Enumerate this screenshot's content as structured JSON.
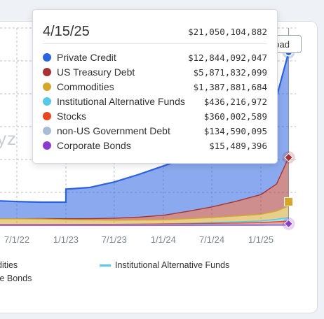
{
  "watermark": "yz",
  "toolbar": {
    "download_label": "oad"
  },
  "tooltip": {
    "date": "4/15/25",
    "total": "$21,050,104,882",
    "rows": [
      {
        "label": "Private Credit",
        "value": "$12,844,092,047",
        "color": "#2b62e0"
      },
      {
        "label": "US Treasury Debt",
        "value": "$5,871,832,099",
        "color": "#a63232"
      },
      {
        "label": "Commodities",
        "value": "$1,387,881,684",
        "color": "#d4a72c"
      },
      {
        "label": "Institutional Alternative Funds",
        "value": "$436,216,972",
        "color": "#56c8e8"
      },
      {
        "label": "Stocks",
        "value": "$360,002,589",
        "color": "#e8481f"
      },
      {
        "label": "non-US Government Debt",
        "value": "$134,590,095",
        "color": "#a9bcd6"
      },
      {
        "label": "Corporate Bonds",
        "value": "$15,489,396",
        "color": "#8b3ccc"
      }
    ]
  },
  "legend": {
    "items": [
      {
        "label": "dities",
        "color": "#d4a72c"
      },
      {
        "label": "Institutional Alternative Funds",
        "color": "#56c8e8"
      },
      {
        "label": "te Bonds",
        "color": "#8b3ccc"
      }
    ]
  },
  "chart_data": {
    "type": "area",
    "stacked": true,
    "x_ticks": [
      "7/1/22",
      "1/1/23",
      "7/1/23",
      "1/1/24",
      "7/1/24",
      "1/1/25"
    ],
    "x": [
      "2022-04-15",
      "2022-07-01",
      "2022-10-01",
      "2023-01-01",
      "2023-04-01",
      "2023-07-01",
      "2023-10-01",
      "2024-01-01",
      "2024-04-01",
      "2024-07-01",
      "2024-10-01",
      "2025-01-01",
      "2025-03-01",
      "2025-04-15"
    ],
    "series": [
      {
        "name": "Private Credit",
        "color": "#2b62e0",
        "values": [
          2.2,
          2.1,
          2.0,
          3.6,
          3.8,
          4.4,
          5.2,
          6.0,
          6.6,
          7.4,
          8.2,
          9.4,
          10.6,
          12.8
        ]
      },
      {
        "name": "US Treasury Debt",
        "color": "#a63232",
        "values": [
          0.0,
          0.0,
          0.05,
          0.1,
          0.15,
          0.25,
          0.35,
          0.55,
          0.9,
          1.3,
          1.8,
          2.4,
          3.3,
          5.9
        ]
      },
      {
        "name": "Commodities",
        "color": "#d4a72c",
        "values": [
          0.7,
          0.7,
          0.68,
          0.6,
          0.55,
          0.5,
          0.5,
          0.5,
          0.55,
          0.6,
          0.7,
          0.8,
          1.0,
          1.4
        ]
      },
      {
        "name": "Institutional Alternative Funds",
        "color": "#56c8e8",
        "values": [
          0.0,
          0.0,
          0.0,
          0.0,
          0.0,
          0.0,
          0.0,
          0.0,
          0.05,
          0.1,
          0.15,
          0.2,
          0.3,
          0.44
        ]
      },
      {
        "name": "Stocks",
        "color": "#e8481f",
        "values": [
          0.05,
          0.05,
          0.05,
          0.05,
          0.05,
          0.05,
          0.06,
          0.08,
          0.1,
          0.12,
          0.15,
          0.2,
          0.28,
          0.36
        ]
      },
      {
        "name": "non-US Government Debt",
        "color": "#a9bcd6",
        "values": [
          0.03,
          0.03,
          0.03,
          0.04,
          0.05,
          0.06,
          0.07,
          0.08,
          0.09,
          0.1,
          0.11,
          0.12,
          0.13,
          0.13
        ]
      },
      {
        "name": "Corporate Bonds",
        "color": "#8b3ccc",
        "values": [
          0.0,
          0.0,
          0.0,
          0.0,
          0.0,
          0.0,
          0.0,
          0.0,
          0.0,
          0.01,
          0.01,
          0.01,
          0.015,
          0.015
        ]
      }
    ],
    "ylabel": "",
    "grid": true,
    "legend_position": "bottom"
  }
}
